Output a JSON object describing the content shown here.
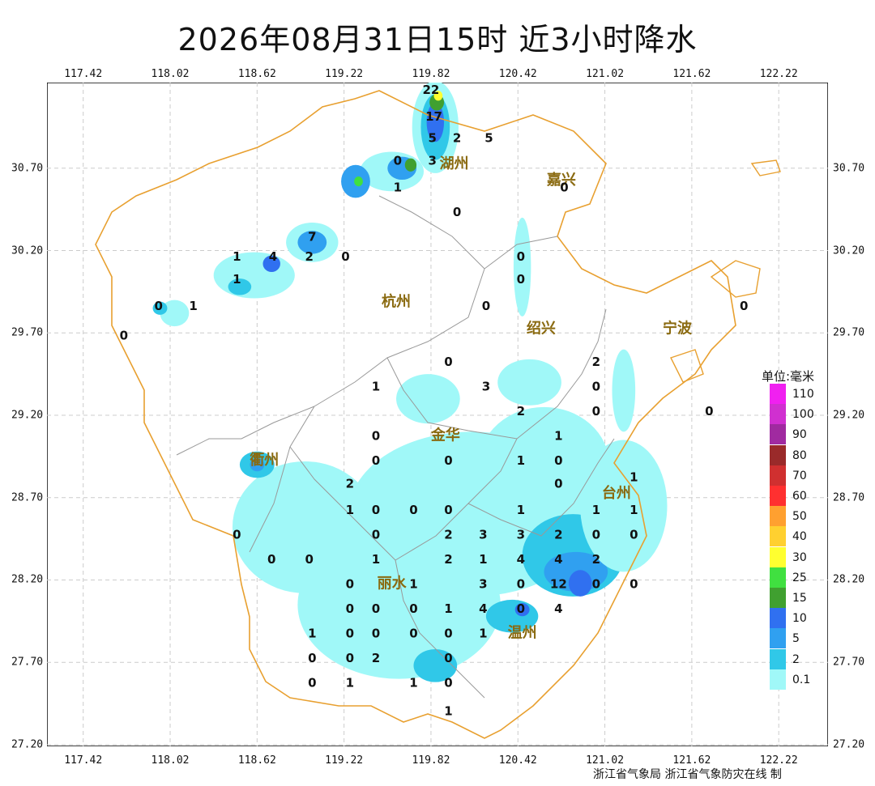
{
  "title": "2026年08月31日15时  近3小时降水",
  "axes": {
    "lon_ticks": [
      "117.42",
      "118.02",
      "118.62",
      "119.22",
      "119.82",
      "120.42",
      "121.02",
      "121.62",
      "122.22"
    ],
    "lat_ticks": [
      "30.70",
      "30.20",
      "29.70",
      "29.20",
      "28.70",
      "28.20",
      "27.70",
      "27.20"
    ]
  },
  "legend": {
    "title": "单位:毫米",
    "items": [
      {
        "label": "110",
        "color": "#f020f0"
      },
      {
        "label": "100",
        "color": "#d030d0"
      },
      {
        "label": "90",
        "color": "#a02aa0"
      },
      {
        "label": "80",
        "color": "#9a2a2a"
      },
      {
        "label": "70",
        "color": "#d03030"
      },
      {
        "label": "60",
        "color": "#ff3030"
      },
      {
        "label": "50",
        "color": "#ffa030"
      },
      {
        "label": "40",
        "color": "#ffd030"
      },
      {
        "label": "30",
        "color": "#ffff30"
      },
      {
        "label": "25",
        "color": "#40e040"
      },
      {
        "label": "15",
        "color": "#40a030"
      },
      {
        "label": "10",
        "color": "#3070f0"
      },
      {
        "label": "5",
        "color": "#30a0f0"
      },
      {
        "label": "2",
        "color": "#30c8e8"
      },
      {
        "label": "0.1",
        "color": "#a0f8f8"
      }
    ]
  },
  "cities": [
    {
      "name": "湖州",
      "lon": 119.98,
      "lat": 30.7
    },
    {
      "name": "嘉兴",
      "lon": 120.72,
      "lat": 30.6
    },
    {
      "name": "杭州",
      "lon": 119.58,
      "lat": 29.86
    },
    {
      "name": "绍兴",
      "lon": 120.58,
      "lat": 29.7
    },
    {
      "name": "宁波",
      "lon": 121.52,
      "lat": 29.7
    },
    {
      "name": "金华",
      "lon": 119.92,
      "lat": 29.05
    },
    {
      "name": "衢州",
      "lon": 118.67,
      "lat": 28.9
    },
    {
      "name": "台州",
      "lon": 121.1,
      "lat": 28.7
    },
    {
      "name": "丽水",
      "lon": 119.55,
      "lat": 28.15
    },
    {
      "name": "温州",
      "lon": 120.45,
      "lat": 27.85
    }
  ],
  "stations": [
    {
      "v": "22",
      "lon": 119.82,
      "lat": 31.15
    },
    {
      "v": "17",
      "lon": 119.84,
      "lat": 30.99
    },
    {
      "v": "5",
      "lon": 119.83,
      "lat": 30.86
    },
    {
      "v": "2",
      "lon": 120.0,
      "lat": 30.86
    },
    {
      "v": "5",
      "lon": 120.22,
      "lat": 30.86
    },
    {
      "v": "0",
      "lon": 119.59,
      "lat": 30.72
    },
    {
      "v": "3",
      "lon": 119.83,
      "lat": 30.72
    },
    {
      "v": "1",
      "lon": 119.59,
      "lat": 30.56
    },
    {
      "v": "0",
      "lon": 120.0,
      "lat": 30.41
    },
    {
      "v": "0",
      "lon": 120.74,
      "lat": 30.56
    },
    {
      "v": "7",
      "lon": 119.0,
      "lat": 30.26
    },
    {
      "v": "1",
      "lon": 118.48,
      "lat": 30.14
    },
    {
      "v": "4",
      "lon": 118.73,
      "lat": 30.14
    },
    {
      "v": "2",
      "lon": 118.98,
      "lat": 30.14
    },
    {
      "v": "0",
      "lon": 119.23,
      "lat": 30.14
    },
    {
      "v": "0",
      "lon": 120.44,
      "lat": 30.14
    },
    {
      "v": "1",
      "lon": 118.48,
      "lat": 30.0
    },
    {
      "v": "0",
      "lon": 120.44,
      "lat": 30.0
    },
    {
      "v": "0",
      "lon": 117.94,
      "lat": 29.84
    },
    {
      "v": "1",
      "lon": 118.18,
      "lat": 29.84
    },
    {
      "v": "0",
      "lon": 120.2,
      "lat": 29.84
    },
    {
      "v": "0",
      "lon": 121.98,
      "lat": 29.84
    },
    {
      "v": "0",
      "lon": 117.7,
      "lat": 29.66
    },
    {
      "v": "0",
      "lon": 119.94,
      "lat": 29.5
    },
    {
      "v": "2",
      "lon": 120.96,
      "lat": 29.5
    },
    {
      "v": "3",
      "lon": 120.2,
      "lat": 29.35
    },
    {
      "v": "1",
      "lon": 119.44,
      "lat": 29.35
    },
    {
      "v": "0",
      "lon": 120.96,
      "lat": 29.35
    },
    {
      "v": "2",
      "lon": 120.44,
      "lat": 29.2
    },
    {
      "v": "0",
      "lon": 120.96,
      "lat": 29.2
    },
    {
      "v": "0",
      "lon": 121.74,
      "lat": 29.2
    },
    {
      "v": "0",
      "lon": 119.44,
      "lat": 29.05
    },
    {
      "v": "1",
      "lon": 120.7,
      "lat": 29.05
    },
    {
      "v": "0",
      "lon": 119.44,
      "lat": 28.9
    },
    {
      "v": "0",
      "lon": 119.94,
      "lat": 28.9
    },
    {
      "v": "1",
      "lon": 120.44,
      "lat": 28.9
    },
    {
      "v": "0",
      "lon": 120.7,
      "lat": 28.9
    },
    {
      "v": "1",
      "lon": 121.22,
      "lat": 28.8
    },
    {
      "v": "2",
      "lon": 119.26,
      "lat": 28.76
    },
    {
      "v": "0",
      "lon": 120.7,
      "lat": 28.76
    },
    {
      "v": "1",
      "lon": 119.26,
      "lat": 28.6
    },
    {
      "v": "0",
      "lon": 119.44,
      "lat": 28.6
    },
    {
      "v": "0",
      "lon": 119.7,
      "lat": 28.6
    },
    {
      "v": "0",
      "lon": 119.94,
      "lat": 28.6
    },
    {
      "v": "1",
      "lon": 120.44,
      "lat": 28.6
    },
    {
      "v": "1",
      "lon": 120.96,
      "lat": 28.6
    },
    {
      "v": "1",
      "lon": 121.22,
      "lat": 28.6
    },
    {
      "v": "0",
      "lon": 118.48,
      "lat": 28.45
    },
    {
      "v": "0",
      "lon": 119.44,
      "lat": 28.45
    },
    {
      "v": "2",
      "lon": 119.94,
      "lat": 28.45
    },
    {
      "v": "3",
      "lon": 120.18,
      "lat": 28.45
    },
    {
      "v": "3",
      "lon": 120.44,
      "lat": 28.45
    },
    {
      "v": "2",
      "lon": 120.7,
      "lat": 28.45
    },
    {
      "v": "0",
      "lon": 120.96,
      "lat": 28.45
    },
    {
      "v": "0",
      "lon": 121.22,
      "lat": 28.45
    },
    {
      "v": "0",
      "lon": 118.72,
      "lat": 28.3
    },
    {
      "v": "0",
      "lon": 118.98,
      "lat": 28.3
    },
    {
      "v": "1",
      "lon": 119.44,
      "lat": 28.3
    },
    {
      "v": "2",
      "lon": 119.94,
      "lat": 28.3
    },
    {
      "v": "1",
      "lon": 120.18,
      "lat": 28.3
    },
    {
      "v": "4",
      "lon": 120.44,
      "lat": 28.3
    },
    {
      "v": "4",
      "lon": 120.7,
      "lat": 28.3
    },
    {
      "v": "2",
      "lon": 120.96,
      "lat": 28.3
    },
    {
      "v": "0",
      "lon": 119.26,
      "lat": 28.15
    },
    {
      "v": "1",
      "lon": 119.7,
      "lat": 28.15
    },
    {
      "v": "3",
      "lon": 120.18,
      "lat": 28.15
    },
    {
      "v": "0",
      "lon": 120.44,
      "lat": 28.15
    },
    {
      "v": "12",
      "lon": 120.7,
      "lat": 28.15
    },
    {
      "v": "0",
      "lon": 120.96,
      "lat": 28.15
    },
    {
      "v": "0",
      "lon": 121.22,
      "lat": 28.15
    },
    {
      "v": "0",
      "lon": 119.26,
      "lat": 28.0
    },
    {
      "v": "0",
      "lon": 119.44,
      "lat": 28.0
    },
    {
      "v": "0",
      "lon": 119.7,
      "lat": 28.0
    },
    {
      "v": "1",
      "lon": 119.94,
      "lat": 28.0
    },
    {
      "v": "4",
      "lon": 120.18,
      "lat": 28.0
    },
    {
      "v": "0",
      "lon": 120.44,
      "lat": 28.0
    },
    {
      "v": "4",
      "lon": 120.7,
      "lat": 28.0
    },
    {
      "v": "1",
      "lon": 119.0,
      "lat": 27.85
    },
    {
      "v": "0",
      "lon": 119.26,
      "lat": 27.85
    },
    {
      "v": "0",
      "lon": 119.44,
      "lat": 27.85
    },
    {
      "v": "0",
      "lon": 119.7,
      "lat": 27.85
    },
    {
      "v": "0",
      "lon": 119.94,
      "lat": 27.85
    },
    {
      "v": "1",
      "lon": 120.18,
      "lat": 27.85
    },
    {
      "v": "0",
      "lon": 119.0,
      "lat": 27.7
    },
    {
      "v": "0",
      "lon": 119.26,
      "lat": 27.7
    },
    {
      "v": "2",
      "lon": 119.44,
      "lat": 27.7
    },
    {
      "v": "0",
      "lon": 119.94,
      "lat": 27.7
    },
    {
      "v": "0",
      "lon": 119.0,
      "lat": 27.55
    },
    {
      "v": "1",
      "lon": 119.26,
      "lat": 27.55
    },
    {
      "v": "1",
      "lon": 119.7,
      "lat": 27.55
    },
    {
      "v": "0",
      "lon": 119.94,
      "lat": 27.55
    },
    {
      "v": "1",
      "lon": 119.94,
      "lat": 27.38
    }
  ],
  "rain_cells": [
    {
      "lon": 119.85,
      "lat": 30.95,
      "rx": 0.16,
      "ry": 0.28,
      "level": "0.1"
    },
    {
      "lon": 119.85,
      "lat": 30.95,
      "rx": 0.1,
      "ry": 0.2,
      "level": "2"
    },
    {
      "lon": 119.85,
      "lat": 30.98,
      "rx": 0.06,
      "ry": 0.12,
      "level": "10"
    },
    {
      "lon": 119.86,
      "lat": 31.1,
      "rx": 0.05,
      "ry": 0.05,
      "level": "15"
    },
    {
      "lon": 119.87,
      "lat": 31.14,
      "rx": 0.03,
      "ry": 0.03,
      "level": "30"
    },
    {
      "lon": 119.55,
      "lat": 30.68,
      "rx": 0.22,
      "ry": 0.12,
      "level": "0.1"
    },
    {
      "lon": 119.62,
      "lat": 30.7,
      "rx": 0.1,
      "ry": 0.07,
      "level": "5"
    },
    {
      "lon": 119.68,
      "lat": 30.72,
      "rx": 0.04,
      "ry": 0.04,
      "level": "15"
    },
    {
      "lon": 119.3,
      "lat": 30.62,
      "rx": 0.1,
      "ry": 0.1,
      "level": "5"
    },
    {
      "lon": 119.32,
      "lat": 30.62,
      "rx": 0.03,
      "ry": 0.03,
      "level": "25"
    },
    {
      "lon": 119.0,
      "lat": 30.25,
      "rx": 0.18,
      "ry": 0.12,
      "level": "0.1"
    },
    {
      "lon": 119.0,
      "lat": 30.25,
      "rx": 0.1,
      "ry": 0.07,
      "level": "5"
    },
    {
      "lon": 118.6,
      "lat": 30.05,
      "rx": 0.28,
      "ry": 0.14,
      "level": "0.1"
    },
    {
      "lon": 118.72,
      "lat": 30.12,
      "rx": 0.06,
      "ry": 0.05,
      "level": "10"
    },
    {
      "lon": 118.5,
      "lat": 29.98,
      "rx": 0.08,
      "ry": 0.05,
      "level": "2"
    },
    {
      "lon": 118.05,
      "lat": 29.82,
      "rx": 0.1,
      "ry": 0.08,
      "level": "0.1"
    },
    {
      "lon": 117.95,
      "lat": 29.85,
      "rx": 0.05,
      "ry": 0.04,
      "level": "2"
    },
    {
      "lon": 120.48,
      "lat": 29.42,
      "rx": 0.08,
      "ry": 0.06,
      "level": "2"
    },
    {
      "lon": 120.48,
      "lat": 29.42,
      "rx": 0.04,
      "ry": 0.04,
      "level": "5"
    },
    {
      "lon": 120.1,
      "lat": 28.6,
      "rx": 0.85,
      "ry": 0.5,
      "level": "0.1"
    },
    {
      "lon": 119.6,
      "lat": 28.05,
      "rx": 0.7,
      "ry": 0.45,
      "level": "0.1"
    },
    {
      "lon": 120.6,
      "lat": 28.9,
      "rx": 0.45,
      "ry": 0.35,
      "level": "0.1"
    },
    {
      "lon": 120.8,
      "lat": 28.35,
      "rx": 0.35,
      "ry": 0.25,
      "level": "2"
    },
    {
      "lon": 120.82,
      "lat": 28.25,
      "rx": 0.22,
      "ry": 0.12,
      "level": "5"
    },
    {
      "lon": 120.85,
      "lat": 28.18,
      "rx": 0.08,
      "ry": 0.08,
      "level": "10"
    },
    {
      "lon": 120.38,
      "lat": 27.98,
      "rx": 0.18,
      "ry": 0.1,
      "level": "2"
    },
    {
      "lon": 120.45,
      "lat": 28.02,
      "rx": 0.05,
      "ry": 0.04,
      "level": "10"
    },
    {
      "lon": 119.85,
      "lat": 27.68,
      "rx": 0.15,
      "ry": 0.1,
      "level": "2"
    },
    {
      "lon": 118.95,
      "lat": 28.52,
      "rx": 0.5,
      "ry": 0.4,
      "level": "0.1"
    },
    {
      "lon": 121.15,
      "lat": 28.65,
      "rx": 0.3,
      "ry": 0.4,
      "level": "0.1"
    },
    {
      "lon": 118.62,
      "lat": 28.9,
      "rx": 0.12,
      "ry": 0.08,
      "level": "2"
    },
    {
      "lon": 118.62,
      "lat": 28.9,
      "rx": 0.05,
      "ry": 0.04,
      "level": "5"
    },
    {
      "lon": 119.8,
      "lat": 29.3,
      "rx": 0.22,
      "ry": 0.15,
      "level": "0.1"
    },
    {
      "lon": 120.5,
      "lat": 29.4,
      "rx": 0.22,
      "ry": 0.14,
      "level": "0.1"
    },
    {
      "lon": 120.45,
      "lat": 30.1,
      "rx": 0.06,
      "ry": 0.3,
      "level": "0.1"
    },
    {
      "lon": 121.15,
      "lat": 29.35,
      "rx": 0.08,
      "ry": 0.25,
      "level": "0.1"
    }
  ],
  "credit": "浙江省气象局  浙江省气象防灾在线  制"
}
